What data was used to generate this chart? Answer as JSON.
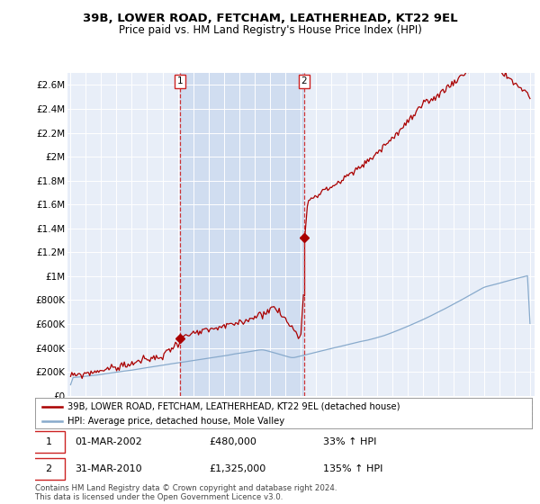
{
  "title": "39B, LOWER ROAD, FETCHAM, LEATHERHEAD, KT22 9EL",
  "subtitle": "Price paid vs. HM Land Registry's House Price Index (HPI)",
  "legend_property": "39B, LOWER ROAD, FETCHAM, LEATHERHEAD, KT22 9EL (detached house)",
  "legend_hpi": "HPI: Average price, detached house, Mole Valley",
  "footnote": "Contains HM Land Registry data © Crown copyright and database right 2024.\nThis data is licensed under the Open Government Licence v3.0.",
  "sale1_date": "01-MAR-2002",
  "sale1_price": "£480,000",
  "sale1_hpi": "33% ↑ HPI",
  "sale2_date": "31-MAR-2010",
  "sale2_price": "£1,325,000",
  "sale2_hpi": "135% ↑ HPI",
  "sale1_x": 2002.17,
  "sale2_x": 2010.25,
  "sale1_y": 480000,
  "sale2_y": 1325000,
  "ylim": [
    0,
    2700000
  ],
  "xlim": [
    1994.8,
    2025.3
  ],
  "yticks": [
    0,
    200000,
    400000,
    600000,
    800000,
    1000000,
    1200000,
    1400000,
    1600000,
    1800000,
    2000000,
    2200000,
    2400000,
    2600000
  ],
  "ytick_labels": [
    "£0",
    "£200K",
    "£400K",
    "£600K",
    "£800K",
    "£1M",
    "£1.2M",
    "£1.4M",
    "£1.6M",
    "£1.8M",
    "£2M",
    "£2.2M",
    "£2.4M",
    "£2.6M"
  ],
  "xticks": [
    1995,
    1996,
    1997,
    1998,
    1999,
    2000,
    2001,
    2002,
    2003,
    2004,
    2005,
    2006,
    2007,
    2008,
    2009,
    2010,
    2011,
    2012,
    2013,
    2014,
    2015,
    2016,
    2017,
    2018,
    2019,
    2020,
    2021,
    2022,
    2023,
    2024,
    2025
  ],
  "bg_color": "#e8eef8",
  "shade_color": "#d0ddf0",
  "grid_color": "#ffffff",
  "line_color_red": "#aa0000",
  "line_color_blue": "#88aacc",
  "vline_color": "#cc2222",
  "marker_color": "#aa0000",
  "title_fontsize": 9.5,
  "subtitle_fontsize": 8.5
}
